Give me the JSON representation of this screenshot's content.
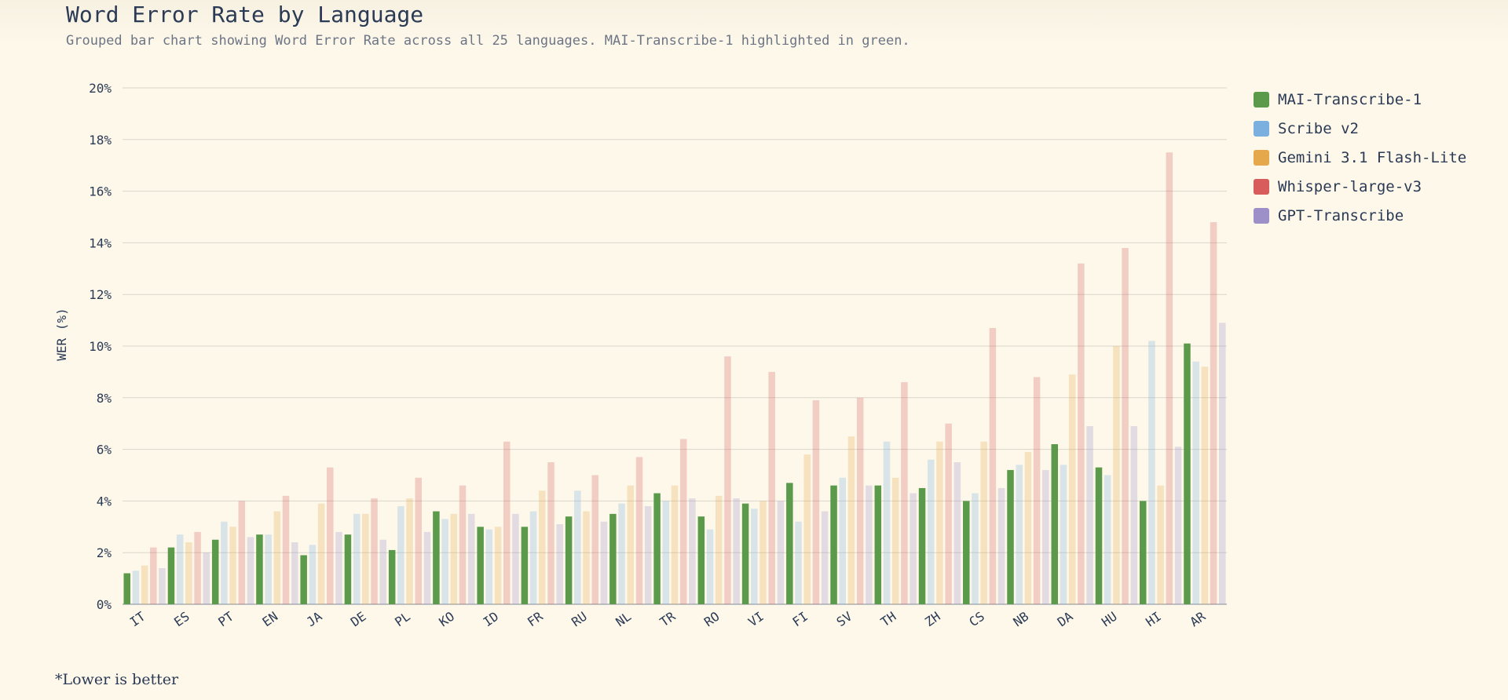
{
  "header": {
    "title": "Word Error Rate by Language",
    "subtitle": "Grouped bar chart showing Word Error Rate across all 25 languages. MAI-Transcribe-1 highlighted in green."
  },
  "footnote": "*Lower is better",
  "colors": {
    "mai": "#5a9a4a",
    "scribe": "#7aafe0",
    "gemini": "#e5a84a",
    "whisper": "#d85c5c",
    "gpt": "#9d8fc8",
    "grid": "#d9d6cc",
    "axis": "#9aa0a8"
  },
  "chart_data": {
    "type": "bar",
    "ylabel": "WER (%)",
    "ylim": [
      0,
      20
    ],
    "yticks": [
      "0%",
      "2%",
      "4%",
      "6%",
      "8%",
      "10%",
      "12%",
      "14%",
      "16%",
      "18%",
      "20%"
    ],
    "grid": true,
    "legend_placement": "top-right",
    "categories": [
      "IT",
      "ES",
      "PT",
      "EN",
      "JA",
      "DE",
      "PL",
      "KO",
      "ID",
      "FR",
      "RU",
      "NL",
      "TR",
      "RO",
      "VI",
      "FI",
      "SV",
      "TH",
      "ZH",
      "CS",
      "NB",
      "DA",
      "HU",
      "HI",
      "AR"
    ],
    "series": [
      {
        "name": "MAI-Transcribe-1",
        "color": "#5a9a4a",
        "highlight": true,
        "values": [
          1.2,
          2.2,
          2.5,
          2.7,
          1.9,
          2.7,
          2.1,
          3.6,
          3.0,
          3.0,
          3.4,
          3.5,
          4.3,
          3.4,
          3.9,
          4.7,
          4.6,
          4.6,
          4.5,
          4.0,
          5.2,
          6.2,
          5.3,
          4.0,
          10.1
        ]
      },
      {
        "name": "Scribe v2",
        "color": "#7aafe0",
        "highlight": false,
        "values": [
          1.3,
          2.7,
          3.2,
          2.7,
          2.3,
          3.5,
          3.8,
          3.3,
          2.9,
          3.6,
          4.4,
          3.9,
          4.0,
          2.9,
          3.7,
          3.2,
          4.9,
          6.3,
          5.6,
          4.3,
          5.4,
          5.4,
          5.0,
          10.2,
          9.4
        ]
      },
      {
        "name": "Gemini 3.1 Flash-Lite",
        "color": "#e5a84a",
        "highlight": false,
        "values": [
          1.5,
          2.4,
          3.0,
          3.6,
          3.9,
          3.5,
          4.1,
          3.5,
          3.0,
          4.4,
          3.6,
          4.6,
          4.6,
          4.2,
          4.0,
          5.8,
          6.5,
          4.9,
          6.3,
          6.3,
          5.9,
          8.9,
          10.0,
          4.6,
          9.2
        ]
      },
      {
        "name": "Whisper-large-v3",
        "color": "#d85c5c",
        "highlight": false,
        "values": [
          2.2,
          2.8,
          4.0,
          4.2,
          5.3,
          4.1,
          4.9,
          4.6,
          6.3,
          5.5,
          5.0,
          5.7,
          6.4,
          9.6,
          9.0,
          7.9,
          8.0,
          8.6,
          7.0,
          10.7,
          8.8,
          13.2,
          13.8,
          17.5,
          14.8
        ]
      },
      {
        "name": "GPT-Transcribe",
        "color": "#9d8fc8",
        "highlight": false,
        "values": [
          1.4,
          2.0,
          2.6,
          2.4,
          2.8,
          2.5,
          2.8,
          3.5,
          3.5,
          3.1,
          3.2,
          3.8,
          4.1,
          4.1,
          4.0,
          3.6,
          4.6,
          4.3,
          5.5,
          4.5,
          5.2,
          6.9,
          6.9,
          6.1,
          10.9
        ]
      }
    ]
  }
}
